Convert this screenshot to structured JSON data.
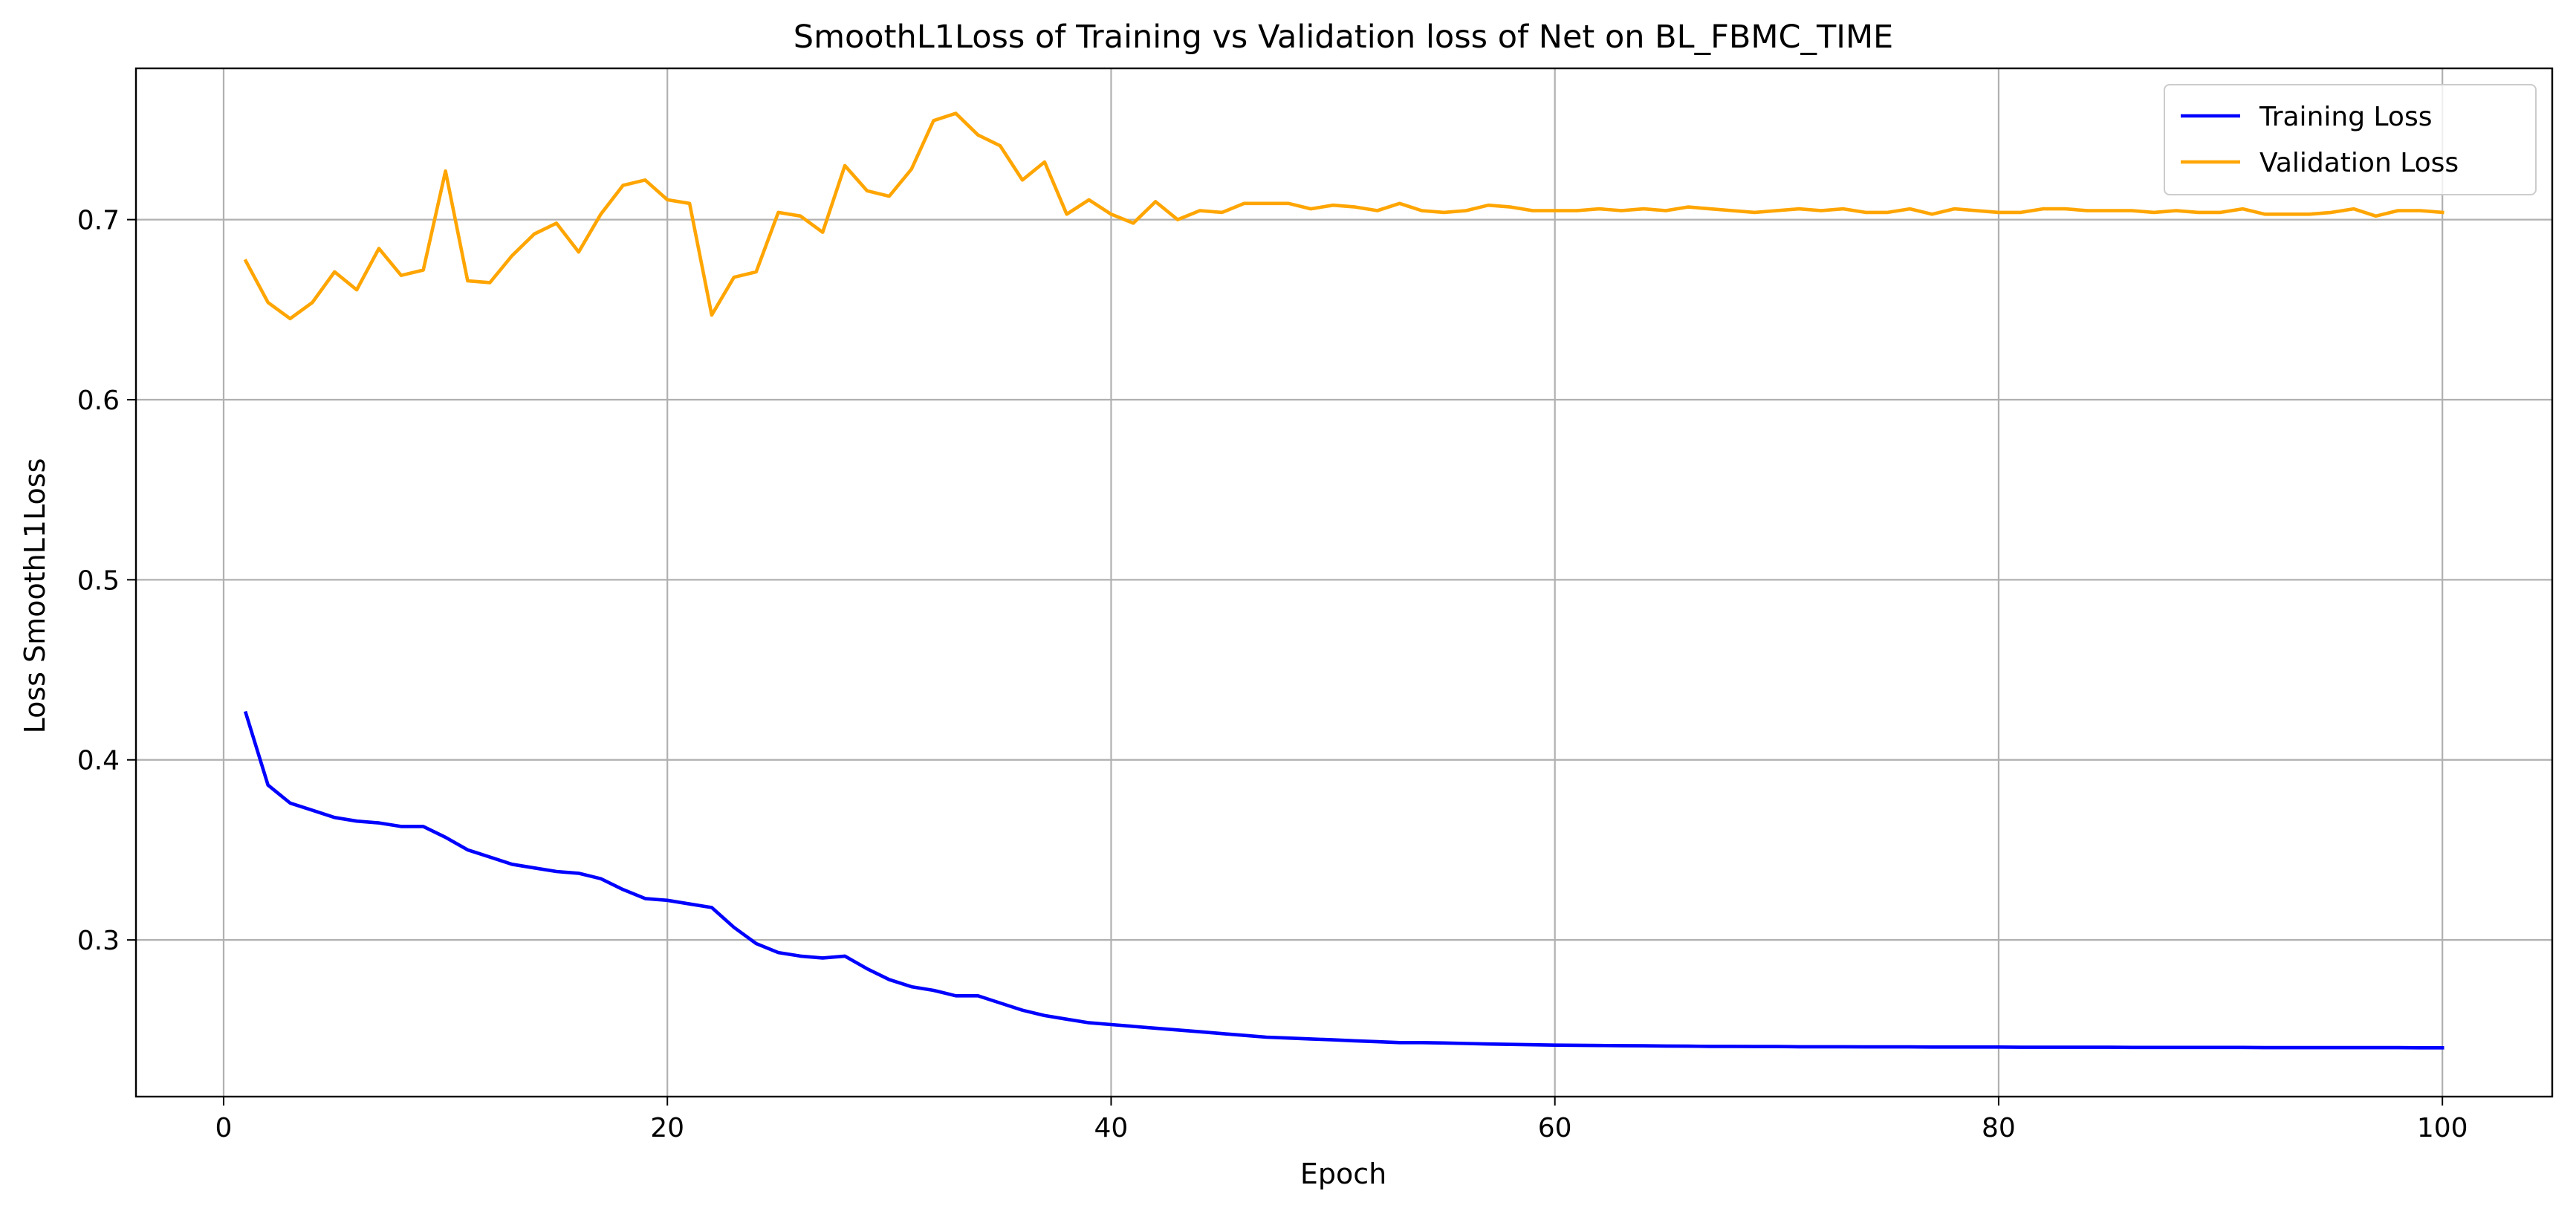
{
  "chart_data": {
    "type": "line",
    "title": "SmoothL1Loss of Training vs Validation loss of Net on BL_FBMC_TIME",
    "xlabel": "Epoch",
    "ylabel": "Loss SmoothL1Loss",
    "xlim": [
      -3.95,
      104.95
    ],
    "ylim": [
      0.213,
      0.784
    ],
    "xticks": [
      0,
      20,
      40,
      60,
      80,
      100
    ],
    "yticks": [
      0.3,
      0.4,
      0.5,
      0.6,
      0.7
    ],
    "xtick_labels": [
      "0",
      "20",
      "40",
      "60",
      "80",
      "100"
    ],
    "ytick_labels": [
      "0.3",
      "0.4",
      "0.5",
      "0.6",
      "0.7"
    ],
    "grid": true,
    "legend_position": "top-right",
    "series": [
      {
        "name": "Training Loss",
        "color": "#0000ff",
        "x": [
          1,
          2,
          3,
          4,
          5,
          6,
          7,
          8,
          9,
          10,
          11,
          12,
          13,
          14,
          15,
          16,
          17,
          18,
          19,
          20,
          21,
          22,
          23,
          24,
          25,
          26,
          27,
          28,
          29,
          30,
          31,
          32,
          33,
          34,
          35,
          36,
          37,
          38,
          39,
          40,
          41,
          42,
          43,
          44,
          45,
          46,
          47,
          48,
          49,
          50,
          51,
          52,
          53,
          54,
          55,
          56,
          57,
          58,
          59,
          60,
          61,
          62,
          63,
          64,
          65,
          66,
          67,
          68,
          69,
          70,
          71,
          72,
          73,
          74,
          75,
          76,
          77,
          78,
          79,
          80,
          81,
          82,
          83,
          84,
          85,
          86,
          87,
          88,
          89,
          90,
          91,
          92,
          93,
          94,
          95,
          96,
          97,
          98,
          99,
          100
        ],
        "values": [
          0.426,
          0.386,
          0.376,
          0.372,
          0.368,
          0.366,
          0.365,
          0.363,
          0.363,
          0.357,
          0.35,
          0.346,
          0.342,
          0.34,
          0.338,
          0.337,
          0.334,
          0.328,
          0.323,
          0.322,
          0.32,
          0.318,
          0.307,
          0.298,
          0.293,
          0.291,
          0.29,
          0.291,
          0.284,
          0.278,
          0.274,
          0.272,
          0.269,
          0.269,
          0.265,
          0.261,
          0.258,
          0.256,
          0.254,
          0.253,
          0.252,
          0.251,
          0.25,
          0.249,
          0.248,
          0.247,
          0.246,
          0.2455,
          0.245,
          0.2445,
          0.244,
          0.2435,
          0.243,
          0.243,
          0.2428,
          0.2425,
          0.2422,
          0.242,
          0.2418,
          0.2416,
          0.2415,
          0.2414,
          0.2413,
          0.2412,
          0.2411,
          0.241,
          0.2409,
          0.2409,
          0.2408,
          0.2408,
          0.2407,
          0.2407,
          0.2407,
          0.2406,
          0.2406,
          0.2406,
          0.2405,
          0.2405,
          0.2405,
          0.2405,
          0.2404,
          0.2404,
          0.2404,
          0.2404,
          0.2404,
          0.2403,
          0.2403,
          0.2403,
          0.2403,
          0.2403,
          0.2403,
          0.2402,
          0.2402,
          0.2402,
          0.2402,
          0.2402,
          0.2402,
          0.2402,
          0.2401,
          0.2401
        ]
      },
      {
        "name": "Validation Loss",
        "color": "#ffa500",
        "x": [
          1,
          2,
          3,
          4,
          5,
          6,
          7,
          8,
          9,
          10,
          11,
          12,
          13,
          14,
          15,
          16,
          17,
          18,
          19,
          20,
          21,
          22,
          23,
          24,
          25,
          26,
          27,
          28,
          29,
          30,
          31,
          32,
          33,
          34,
          35,
          36,
          37,
          38,
          39,
          40,
          41,
          42,
          43,
          44,
          45,
          46,
          47,
          48,
          49,
          50,
          51,
          52,
          53,
          54,
          55,
          56,
          57,
          58,
          59,
          60,
          61,
          62,
          63,
          64,
          65,
          66,
          67,
          68,
          69,
          70,
          71,
          72,
          73,
          74,
          75,
          76,
          77,
          78,
          79,
          80,
          81,
          82,
          83,
          84,
          85,
          86,
          87,
          88,
          89,
          90,
          91,
          92,
          93,
          94,
          95,
          96,
          97,
          98,
          99,
          100
        ],
        "values": [
          0.677,
          0.654,
          0.645,
          0.654,
          0.671,
          0.661,
          0.684,
          0.669,
          0.672,
          0.727,
          0.666,
          0.665,
          0.68,
          0.692,
          0.698,
          0.682,
          0.703,
          0.719,
          0.722,
          0.711,
          0.709,
          0.647,
          0.668,
          0.671,
          0.704,
          0.702,
          0.693,
          0.73,
          0.716,
          0.713,
          0.728,
          0.755,
          0.759,
          0.747,
          0.741,
          0.722,
          0.732,
          0.703,
          0.711,
          0.703,
          0.698,
          0.71,
          0.7,
          0.705,
          0.704,
          0.709,
          0.709,
          0.709,
          0.706,
          0.708,
          0.707,
          0.705,
          0.709,
          0.705,
          0.704,
          0.705,
          0.708,
          0.707,
          0.705,
          0.705,
          0.705,
          0.706,
          0.705,
          0.706,
          0.705,
          0.707,
          0.706,
          0.705,
          0.704,
          0.705,
          0.706,
          0.705,
          0.706,
          0.704,
          0.704,
          0.706,
          0.703,
          0.706,
          0.705,
          0.704,
          0.704,
          0.706,
          0.706,
          0.705,
          0.705,
          0.705,
          0.704,
          0.705,
          0.704,
          0.704,
          0.706,
          0.703,
          0.703,
          0.703,
          0.704,
          0.706,
          0.702,
          0.705,
          0.705,
          0.704
        ]
      }
    ]
  }
}
